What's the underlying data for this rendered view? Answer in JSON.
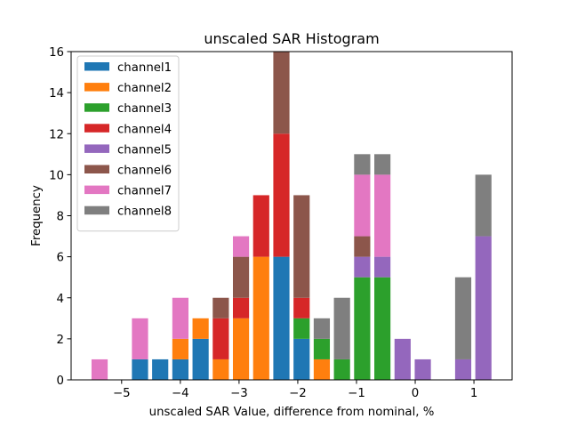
{
  "chart_data": {
    "type": "bar",
    "stacked": true,
    "title": "unscaled SAR Histogram",
    "xlabel": "unscaled SAR Value, difference from nominal, %",
    "ylabel": "Frequency",
    "xlim": [
      -5.86,
      1.65
    ],
    "ylim": [
      0,
      16
    ],
    "xticks": [
      -5,
      -4,
      -3,
      -2,
      -1,
      0,
      1
    ],
    "xtick_labels": [
      "−5",
      "−4",
      "−3",
      "−2",
      "−1",
      "0",
      "1"
    ],
    "yticks": [
      0,
      2,
      4,
      6,
      8,
      10,
      12,
      14,
      16
    ],
    "ytick_labels": [
      "0",
      "2",
      "4",
      "6",
      "8",
      "10",
      "12",
      "14",
      "16"
    ],
    "grid": false,
    "legend_position": "top-left",
    "bin_start": -5.547,
    "bin_width": 0.344,
    "bin_centers": [
      -5.375,
      -5.031,
      -4.687,
      -4.343,
      -3.999,
      -3.655,
      -3.311,
      -2.967,
      -2.623,
      -2.279,
      -1.935,
      -1.591,
      -1.247,
      -0.903,
      -0.559,
      -0.215,
      0.129,
      0.473,
      0.817,
      1.161
    ],
    "series": [
      {
        "name": "channel1",
        "color": "#1f77b4",
        "values": [
          0,
          0,
          1,
          1,
          1,
          2,
          0,
          0,
          0,
          6,
          2,
          0,
          0,
          0,
          0,
          0,
          0,
          0,
          0,
          0
        ]
      },
      {
        "name": "channel2",
        "color": "#ff7f0e",
        "values": [
          0,
          0,
          0,
          0,
          1,
          1,
          1,
          3,
          6,
          0,
          0,
          1,
          0,
          0,
          0,
          0,
          0,
          0,
          0,
          0
        ]
      },
      {
        "name": "channel3",
        "color": "#2ca02c",
        "values": [
          0,
          0,
          0,
          0,
          0,
          0,
          0,
          0,
          0,
          0,
          1,
          1,
          1,
          5,
          5,
          0,
          0,
          0,
          0,
          0
        ]
      },
      {
        "name": "channel4",
        "color": "#d62728",
        "values": [
          0,
          0,
          0,
          0,
          0,
          0,
          2,
          1,
          3,
          6,
          1,
          0,
          0,
          0,
          0,
          0,
          0,
          0,
          0,
          0
        ]
      },
      {
        "name": "channel5",
        "color": "#9467bd",
        "values": [
          0,
          0,
          0,
          0,
          0,
          0,
          0,
          0,
          0,
          0,
          0,
          0,
          0,
          1,
          1,
          2,
          1,
          0,
          1,
          7
        ]
      },
      {
        "name": "channel6",
        "color": "#8c564b",
        "values": [
          0,
          0,
          0,
          0,
          0,
          0,
          1,
          2,
          0,
          4,
          5,
          0,
          0,
          1,
          0,
          0,
          0,
          0,
          0,
          0
        ]
      },
      {
        "name": "channel7",
        "color": "#e377c2",
        "values": [
          1,
          0,
          2,
          0,
          2,
          0,
          0,
          1,
          0,
          0,
          0,
          0,
          0,
          3,
          4,
          0,
          0,
          0,
          0,
          0
        ]
      },
      {
        "name": "channel8",
        "color": "#7f7f7f",
        "values": [
          0,
          0,
          0,
          0,
          0,
          0,
          0,
          0,
          0,
          0,
          0,
          1,
          3,
          1,
          1,
          0,
          0,
          0,
          4,
          3
        ]
      }
    ]
  }
}
